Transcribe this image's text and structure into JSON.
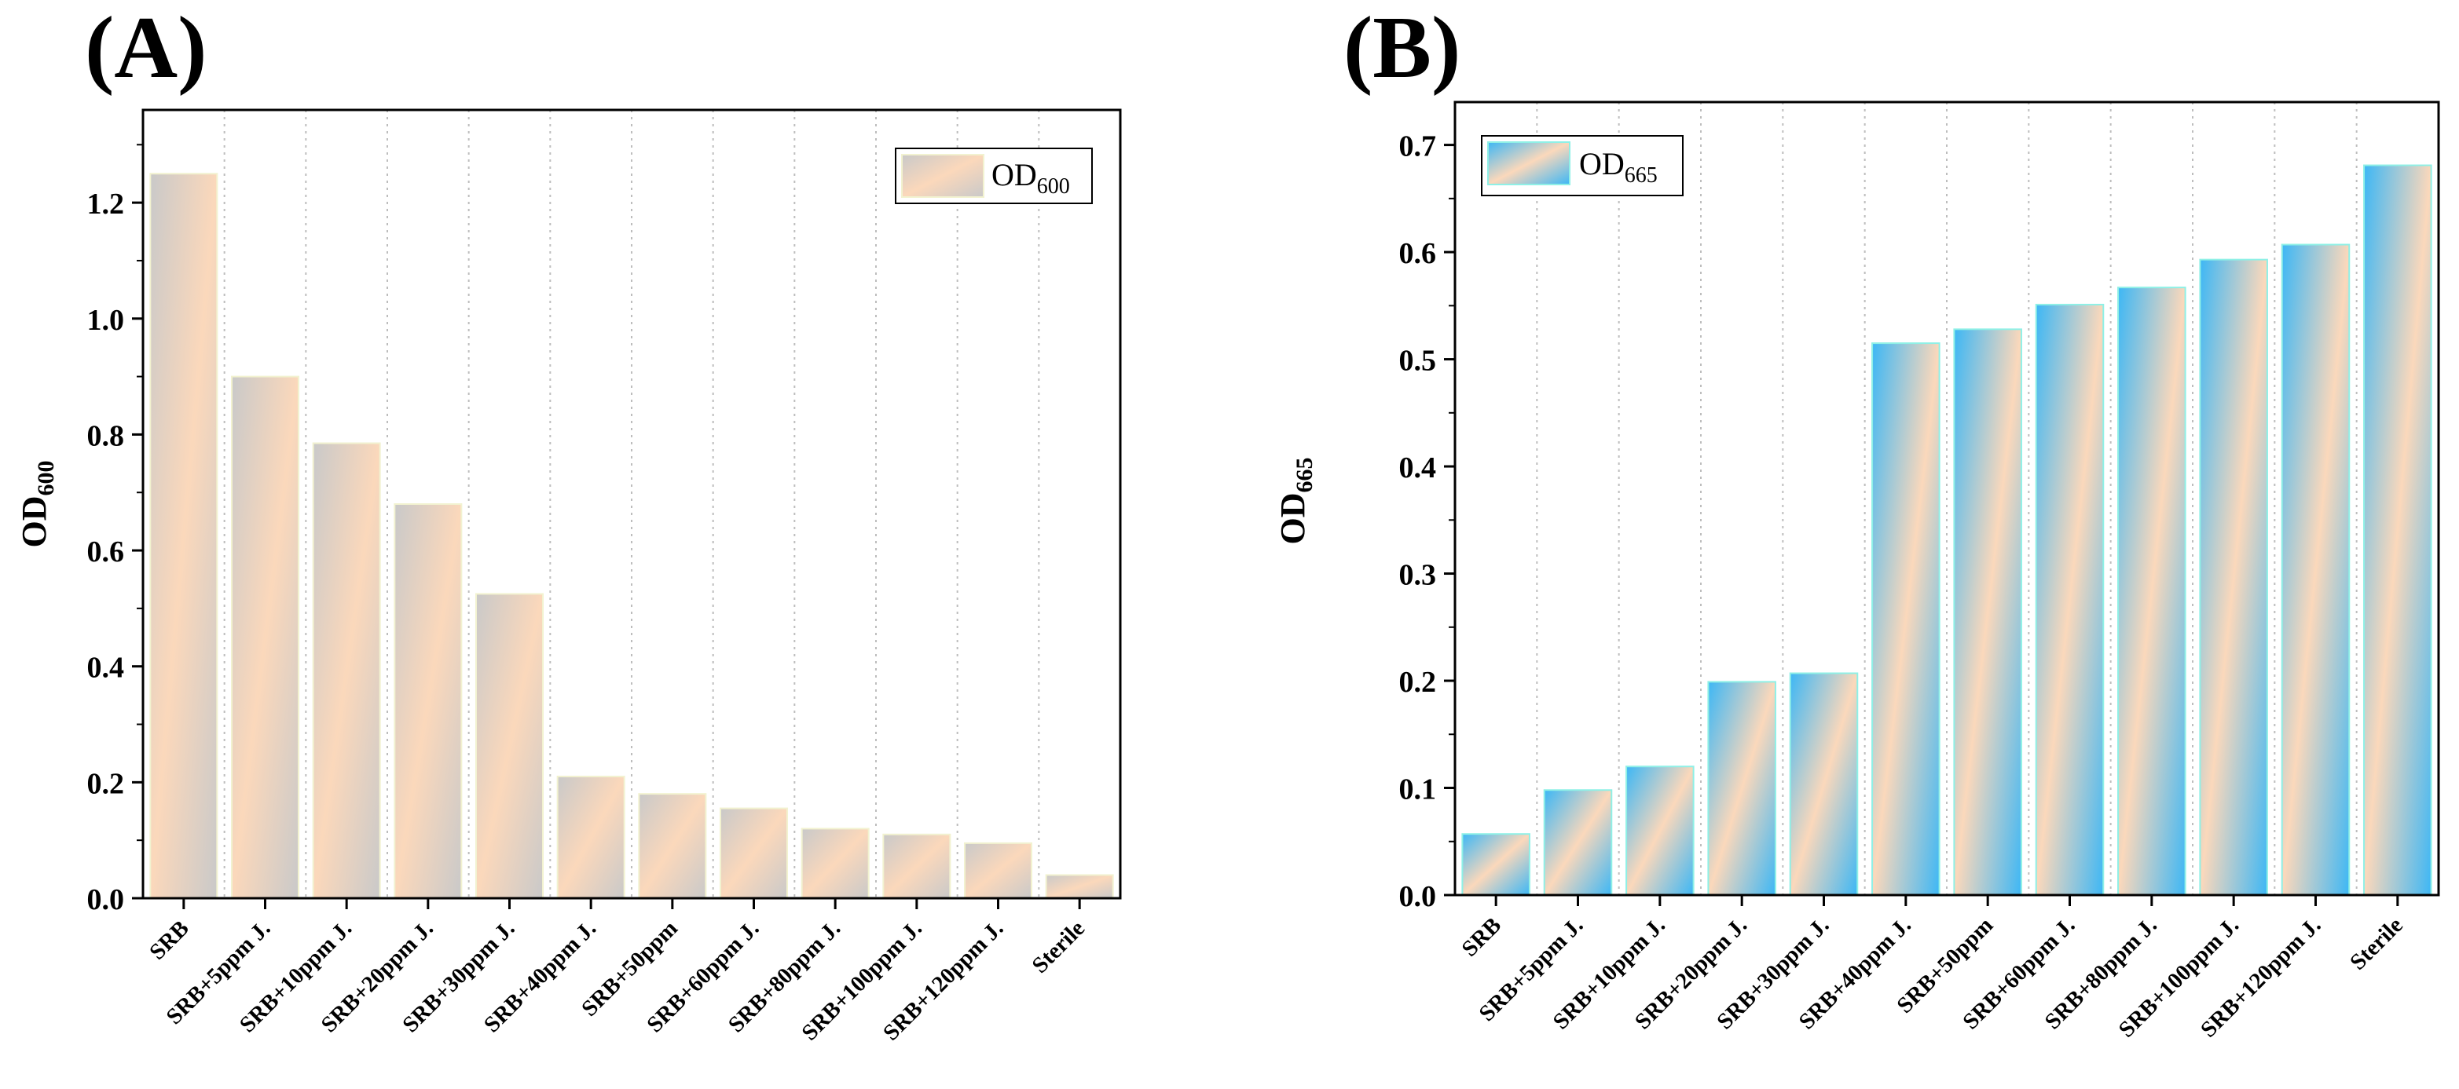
{
  "panels": [
    {
      "panel_label": "(A)",
      "legend_label": "OD",
      "legend_sub": "600",
      "ylabel": "OD",
      "ylabel_sub": "600"
    },
    {
      "panel_label": "(B)",
      "legend_label": "OD",
      "legend_sub": "665",
      "ylabel": "OD",
      "ylabel_sub": "665"
    }
  ],
  "chart_data": [
    {
      "type": "bar",
      "panel": "(A)",
      "title": "",
      "xlabel": "",
      "ylabel": "OD600",
      "categories": [
        "SRB",
        "SRB+5ppm J.",
        "SRB+10ppm J.",
        "SRB+20ppm J.",
        "SRB+30ppm J.",
        "SRB+40ppm J.",
        "SRB+50ppm",
        "SRB+60ppm J.",
        "SRB+80ppm J.",
        "SRB+100ppm J.",
        "SRB+120ppm J.",
        "Sterile"
      ],
      "series": [
        {
          "name": "OD600",
          "values": [
            1.25,
            0.9,
            0.785,
            0.68,
            0.525,
            0.21,
            0.18,
            0.155,
            0.12,
            0.11,
            0.095,
            0.04
          ]
        }
      ],
      "ylim": [
        0,
        1.36
      ],
      "yticks": [
        "0.0",
        "0.2",
        "0.4",
        "0.6",
        "0.8",
        "1.0",
        "1.2"
      ],
      "grid": "vertical dotted",
      "legend": "top-right",
      "colors": {
        "bar_center": "#fbd8bb",
        "bar_edge": "#c9c9c9",
        "bar_outline": "#f2f2d0"
      }
    },
    {
      "type": "bar",
      "panel": "(B)",
      "title": "",
      "xlabel": "",
      "ylabel": "OD665",
      "categories": [
        "SRB",
        "SRB+5ppm J.",
        "SRB+10ppm J.",
        "SRB+20ppm J.",
        "SRB+30ppm J.",
        "SRB+40ppm J.",
        "SRB+50ppm",
        "SRB+60ppm J.",
        "SRB+80ppm J.",
        "SRB+100ppm J.",
        "SRB+120ppm J.",
        "Sterile"
      ],
      "series": [
        {
          "name": "OD665",
          "values": [
            0.057,
            0.098,
            0.12,
            0.199,
            0.207,
            0.515,
            0.528,
            0.551,
            0.567,
            0.593,
            0.607,
            0.681
          ]
        }
      ],
      "ylim": [
        0,
        0.74
      ],
      "yticks": [
        "0.0",
        "0.1",
        "0.2",
        "0.3",
        "0.4",
        "0.5",
        "0.6",
        "0.7"
      ],
      "grid": "vertical dotted",
      "legend": "top-left",
      "colors": {
        "bar_center": "#fbd8bb",
        "bar_edge": "#3db7f5",
        "bar_outline": "#8ff0e6"
      }
    }
  ]
}
